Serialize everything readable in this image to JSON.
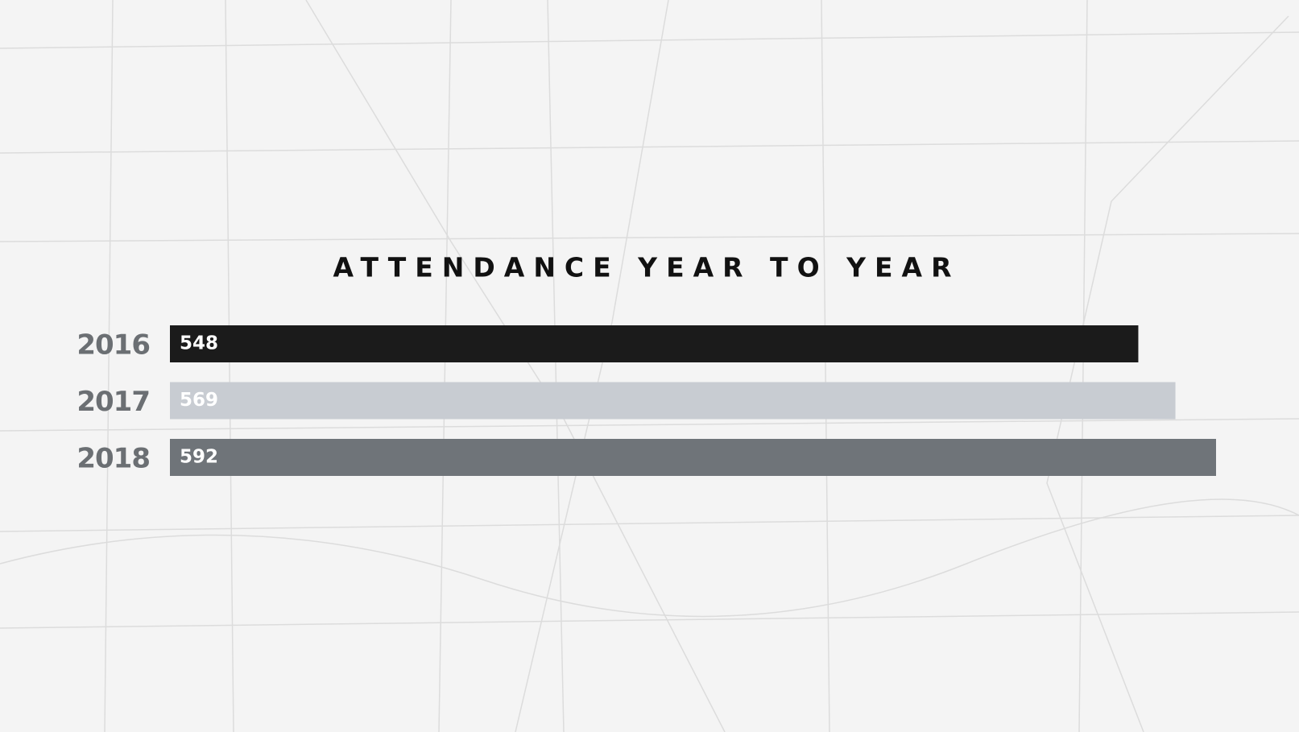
{
  "chart_data": {
    "type": "hbar",
    "title": "ATTENDANCE YEAR TO YEAR",
    "categories": [
      "2016",
      "2017",
      "2018"
    ],
    "values": [
      548,
      569,
      592
    ],
    "colors": [
      "#1b1b1b",
      "#c8ccd2",
      "#6f7479"
    ]
  }
}
